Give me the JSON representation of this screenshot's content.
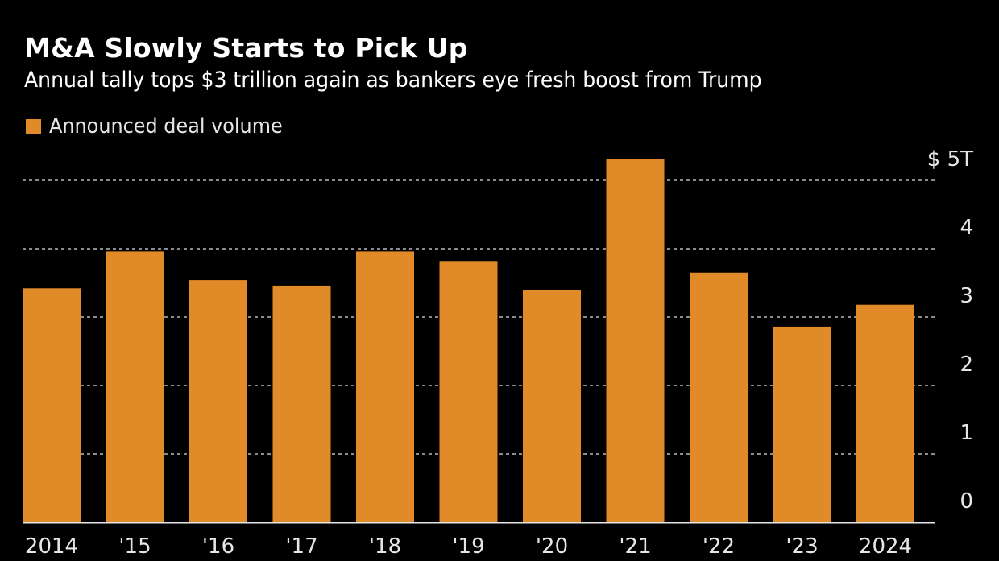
{
  "header": {
    "title": "M&A Slowly Starts to Pick Up",
    "subtitle": "Annual tally tops $3 trillion again as bankers eye fresh boost from Trump"
  },
  "legend": {
    "items": [
      {
        "label": "Announced deal volume",
        "color": "#E08B27"
      }
    ]
  },
  "chart_data": {
    "type": "bar",
    "title": "M&A Slowly Starts to Pick Up",
    "subtitle": "Annual tally tops $3 trillion again as bankers eye fresh boost from Trump",
    "xlabel": "",
    "ylabel": "",
    "categories": [
      "2014",
      "'15",
      "'16",
      "'17",
      "'18",
      "'19",
      "'20",
      "'21",
      "'22",
      "'23",
      "2024"
    ],
    "series": [
      {
        "name": "Announced deal volume",
        "color": "#E08B27",
        "unit": "trillion USD",
        "values": [
          3.42,
          3.96,
          3.54,
          3.46,
          3.96,
          3.82,
          3.4,
          5.31,
          3.65,
          2.86,
          3.18
        ]
      }
    ],
    "ylim": [
      0,
      5
    ],
    "yticks": [
      0,
      1,
      2,
      3,
      4,
      5
    ],
    "ytick_labels": [
      "0",
      "1",
      "2",
      "3",
      "4",
      "$ 5T"
    ],
    "y_axis_position": "right",
    "grid": true,
    "grid_style": "dotted",
    "legend_position": "top-left",
    "background": "#000000"
  }
}
